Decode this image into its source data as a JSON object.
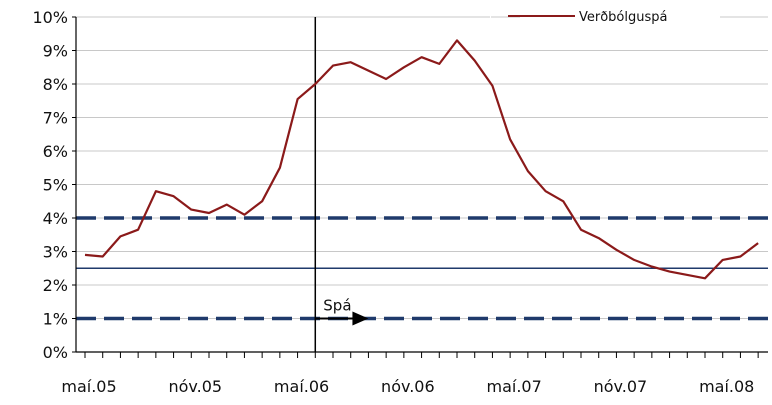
{
  "chart_data": {
    "type": "line",
    "x_unit": "month",
    "x_start": "2005-05",
    "x_tick_labels": [
      "maí.05",
      "nóv.05",
      "maí.06",
      "nóv.06",
      "maí.07",
      "nóv.07",
      "maí.08"
    ],
    "y_tick_labels": [
      "0%",
      "1%",
      "2%",
      "3%",
      "4%",
      "5%",
      "6%",
      "7%",
      "8%",
      "9%",
      "10%"
    ],
    "ylim": [
      0,
      10
    ],
    "grid": "horizontal",
    "legend_position": "top-right",
    "series": [
      {
        "name": "Verðbólguspá",
        "color": "#8b1a1a",
        "points": [
          {
            "x": "2005-05",
            "y": 2.9
          },
          {
            "x": "2005-06",
            "y": 2.85
          },
          {
            "x": "2005-07",
            "y": 3.45
          },
          {
            "x": "2005-08",
            "y": 3.65
          },
          {
            "x": "2005-09",
            "y": 4.8
          },
          {
            "x": "2005-10",
            "y": 4.65
          },
          {
            "x": "2005-11",
            "y": 4.25
          },
          {
            "x": "2005-12",
            "y": 4.15
          },
          {
            "x": "2006-01",
            "y": 4.4
          },
          {
            "x": "2006-02",
            "y": 4.1
          },
          {
            "x": "2006-03",
            "y": 4.5
          },
          {
            "x": "2006-04",
            "y": 5.5
          },
          {
            "x": "2006-05",
            "y": 7.55
          },
          {
            "x": "2006-06",
            "y": 8.0
          },
          {
            "x": "2006-07",
            "y": 8.55
          },
          {
            "x": "2006-08",
            "y": 8.65
          },
          {
            "x": "2006-09",
            "y": 8.4
          },
          {
            "x": "2006-10",
            "y": 8.15
          },
          {
            "x": "2006-11",
            "y": 8.5
          },
          {
            "x": "2006-12",
            "y": 8.8
          },
          {
            "x": "2007-01",
            "y": 8.6
          },
          {
            "x": "2007-02",
            "y": 9.3
          },
          {
            "x": "2007-03",
            "y": 8.7
          },
          {
            "x": "2007-04",
            "y": 7.95
          },
          {
            "x": "2007-05",
            "y": 6.35
          },
          {
            "x": "2007-06",
            "y": 5.4
          },
          {
            "x": "2007-07",
            "y": 4.8
          },
          {
            "x": "2007-08",
            "y": 4.5
          },
          {
            "x": "2007-09",
            "y": 3.65
          },
          {
            "x": "2007-10",
            "y": 3.4
          },
          {
            "x": "2007-11",
            "y": 3.05
          },
          {
            "x": "2007-12",
            "y": 2.75
          },
          {
            "x": "2008-01",
            "y": 2.55
          },
          {
            "x": "2008-02",
            "y": 2.4
          },
          {
            "x": "2008-03",
            "y": 2.3
          },
          {
            "x": "2008-04",
            "y": 2.2
          },
          {
            "x": "2008-05",
            "y": 2.75
          },
          {
            "x": "2008-06",
            "y": 2.85
          },
          {
            "x": "2008-07",
            "y": 3.25
          }
        ]
      }
    ],
    "reference_lines": [
      {
        "y": 4,
        "style": "dashed",
        "color": "#1f3a6b"
      },
      {
        "y": 2.5,
        "style": "solid",
        "color": "#1f3a6b"
      },
      {
        "y": 1,
        "style": "dashed",
        "color": "#1f3a6b"
      }
    ],
    "vertical_line": {
      "x": "2006-06",
      "color": "#000000"
    },
    "annotation": {
      "text": "Spá",
      "arrow_from": "2006-06",
      "arrow_to": "2006-09",
      "y": 1
    }
  }
}
